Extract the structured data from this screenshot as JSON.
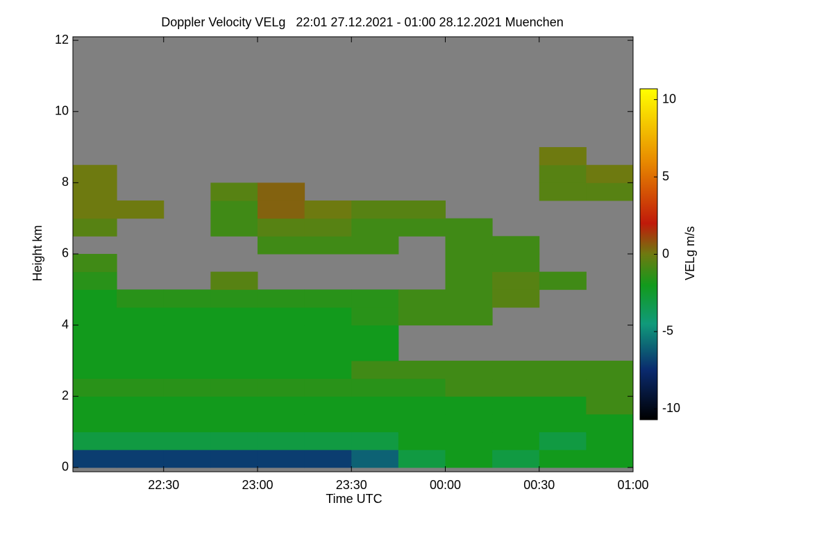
{
  "chart_data": {
    "type": "heatmap",
    "title": "Doppler Velocity VELg   22:01 27.12.2021 - 01:00 28.12.2021 Muenchen",
    "x_label": "Time UTC",
    "y_label": "Height km",
    "colorbar_label": "VELg m/s",
    "missing_color": "#808080",
    "x": [
      22,
      22.25,
      22.5,
      22.75,
      23,
      23.25,
      23.5,
      23.75,
      24,
      24.25,
      24.5,
      24.75,
      25
    ],
    "y": [
      0,
      0.5,
      1,
      1.5,
      2,
      2.5,
      3,
      3.5,
      4,
      4.5,
      5,
      5.5,
      6,
      6.5,
      7,
      7.5,
      8,
      8.5,
      9
    ],
    "z": [
      [
        -7,
        -7,
        -7,
        -7,
        -7,
        -7,
        -6,
        -3,
        -2,
        -3,
        -2,
        -2
      ],
      [
        -3,
        -3,
        -3,
        -3,
        -3,
        -3,
        -3,
        -2,
        -2,
        -2,
        -3,
        -2
      ],
      [
        -2,
        -2,
        -2,
        -2,
        -2,
        -2,
        -2,
        -2,
        -2,
        -2,
        -2,
        -2
      ],
      [
        -2,
        -2,
        -2,
        -2,
        -2,
        -2,
        -2,
        -2,
        -2,
        -2,
        -2,
        -1
      ],
      [
        -1.5,
        -1.5,
        -1.5,
        -1.5,
        -1.5,
        -1.5,
        -1.5,
        -1.5,
        -1,
        -1,
        -1,
        -1
      ],
      [
        -2,
        -2,
        -2,
        -2,
        -2,
        -2,
        -1,
        -1,
        -1,
        -1,
        -1,
        -1
      ],
      [
        -2,
        -2,
        -2,
        -2,
        -2,
        -2,
        -2,
        null,
        null,
        null,
        null,
        null
      ],
      [
        -2,
        -2,
        -2,
        -2,
        -2,
        -2,
        -2,
        null,
        null,
        null,
        null,
        null
      ],
      [
        -2,
        -2,
        -2,
        -2,
        -2,
        -2,
        -1.5,
        -1,
        -1,
        null,
        null,
        null
      ],
      [
        -2,
        -1.5,
        -1.5,
        -1.5,
        -1.5,
        -1.5,
        -1.5,
        -1,
        -1,
        -0.5,
        null,
        null
      ],
      [
        -1.5,
        null,
        null,
        -0.5,
        null,
        null,
        null,
        null,
        -1,
        -0.5,
        -1,
        null
      ],
      [
        -1,
        null,
        null,
        null,
        null,
        null,
        null,
        null,
        -1,
        -1,
        null,
        null
      ],
      [
        null,
        null,
        null,
        null,
        -1,
        -1,
        -1,
        null,
        -1,
        -1,
        null,
        null
      ],
      [
        -0.5,
        null,
        null,
        -1,
        -0.5,
        -0.5,
        -1,
        -1,
        -1,
        null,
        null,
        null
      ],
      [
        0,
        0,
        null,
        -1,
        0.5,
        0,
        -0.5,
        -0.5,
        null,
        null,
        null,
        null
      ],
      [
        0,
        null,
        null,
        -0.5,
        0.5,
        null,
        null,
        null,
        null,
        null,
        -0.5,
        -0.5
      ],
      [
        0,
        null,
        null,
        null,
        null,
        null,
        null,
        null,
        null,
        null,
        -0.5,
        0
      ],
      [
        null,
        null,
        null,
        null,
        null,
        null,
        null,
        null,
        null,
        null,
        0,
        null
      ]
    ],
    "xlim": [
      22.0167,
      25
    ],
    "ylim": [
      -0.12,
      12.1
    ],
    "xticks": [
      {
        "value": 22.5,
        "label": "22:30"
      },
      {
        "value": 23,
        "label": "23:00"
      },
      {
        "value": 23.5,
        "label": "23:30"
      },
      {
        "value": 24,
        "label": "00:00"
      },
      {
        "value": 24.5,
        "label": "00:30"
      },
      {
        "value": 25,
        "label": "01:00"
      }
    ],
    "yticks": [
      0,
      2,
      4,
      6,
      8,
      10,
      12
    ],
    "clim": [
      -10.7,
      10.7
    ],
    "cticks": [
      -10,
      -5,
      0,
      5,
      10
    ],
    "colormap": [
      {
        "value": -10.7,
        "color": "#000000"
      },
      {
        "value": -7.5,
        "color": "#0a2a6e"
      },
      {
        "value": -4.5,
        "color": "#109a7a"
      },
      {
        "value": -2,
        "color": "#129a1c"
      },
      {
        "value": 0,
        "color": "#6e7a10"
      },
      {
        "value": 2,
        "color": "#c01a0a"
      },
      {
        "value": 6,
        "color": "#e88a00"
      },
      {
        "value": 10.7,
        "color": "#ffff00"
      }
    ]
  }
}
